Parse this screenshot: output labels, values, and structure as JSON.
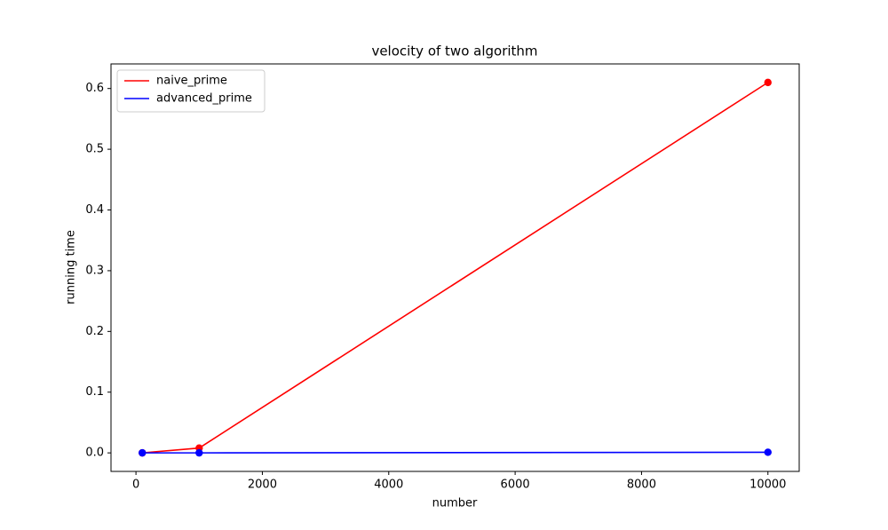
{
  "chart_data": {
    "type": "line",
    "title": "velocity of two algorithm",
    "x_label": "number",
    "y_label": "running time",
    "x": [
      100,
      1000,
      10000
    ],
    "series": [
      {
        "name": "naive_prime",
        "color": "#ff0000",
        "values": [
          0,
          0.008,
          0.61
        ]
      },
      {
        "name": "advanced_prime",
        "color": "#0000ff",
        "values": [
          0,
          0,
          0.001
        ]
      }
    ],
    "xlim": [
      -395,
      10495
    ],
    "ylim": [
      -0.0305,
      0.6405
    ],
    "xticks": [
      0,
      2000,
      4000,
      6000,
      8000,
      10000
    ],
    "yticks": [
      {
        "value": 0,
        "label": "0.0"
      },
      0.1,
      0.2,
      0.3,
      0.4,
      0.5,
      0.6
    ],
    "legend": "upper left",
    "markers": true,
    "grid": false
  }
}
